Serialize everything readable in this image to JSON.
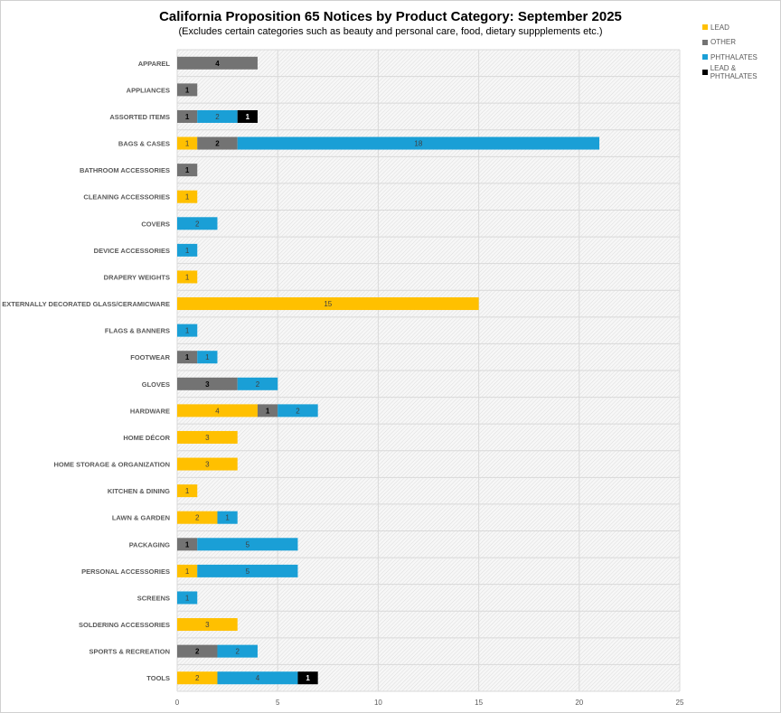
{
  "chart_data": {
    "type": "bar",
    "orientation": "horizontal",
    "stacked": true,
    "title": "California Proposition 65 Notices by Product Category: September 2025",
    "subtitle": "(Excludes certain categories such as beauty and personal care, food, dietary suppplements etc.)",
    "categories": [
      "APPAREL",
      "APPLIANCES",
      "ASSORTED ITEMS",
      "BAGS & CASES",
      "BATHROOM ACCESSORIES",
      "CLEANING ACCESSORIES",
      "COVERS",
      "DEVICE ACCESSORIES",
      "DRAPERY WEIGHTS",
      "EXTERNALLY DECORATED GLASS/CERAMICWARE",
      "FLAGS & BANNERS",
      "FOOTWEAR",
      "GLOVES",
      "HARDWARE",
      "HOME DÉCOR",
      "HOME STORAGE & ORGANIZATION",
      "KITCHEN & DINING",
      "LAWN & GARDEN",
      "PACKAGING",
      "PERSONAL ACCESSORIES",
      "SCREENS",
      "SOLDERING ACCESSORIES",
      "SPORTS & RECREATION",
      "TOOLS"
    ],
    "series": [
      {
        "name": "LEAD",
        "color": "#FFC000",
        "values": [
          0,
          0,
          0,
          1,
          0,
          1,
          0,
          0,
          1,
          15,
          0,
          0,
          0,
          4,
          3,
          3,
          1,
          2,
          0,
          1,
          0,
          3,
          0,
          2
        ]
      },
      {
        "name": "OTHER",
        "color": "#737373",
        "values": [
          4,
          1,
          1,
          2,
          1,
          0,
          0,
          0,
          0,
          0,
          0,
          1,
          3,
          1,
          0,
          0,
          0,
          0,
          1,
          0,
          0,
          0,
          2,
          0
        ]
      },
      {
        "name": "PHTHALATES",
        "color": "#1A9FD6",
        "values": [
          0,
          0,
          2,
          18,
          0,
          0,
          2,
          1,
          0,
          0,
          1,
          1,
          2,
          2,
          0,
          0,
          0,
          1,
          5,
          5,
          1,
          0,
          2,
          4
        ]
      },
      {
        "name": "LEAD & PHTHALATES",
        "color": "#000000",
        "values": [
          0,
          0,
          1,
          0,
          0,
          0,
          0,
          0,
          0,
          0,
          0,
          0,
          0,
          0,
          0,
          0,
          0,
          0,
          0,
          0,
          0,
          0,
          0,
          1
        ]
      }
    ],
    "xlim": [
      0,
      25
    ],
    "xticks": [
      "0",
      "5",
      "10",
      "15",
      "20",
      "25"
    ],
    "grid": true,
    "legend": "top-right",
    "data_labels": true
  }
}
